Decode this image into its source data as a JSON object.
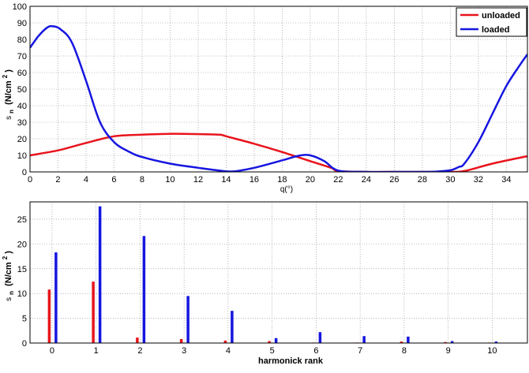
{
  "chart_data": [
    {
      "type": "line",
      "title": "",
      "xlabel": "q(°)",
      "ylabel": "s_n (N/cm²)",
      "ylabel_parts": {
        "sym": "s",
        "sub": "n",
        "unit": "(N/cm",
        "sup": "2",
        "close": ")"
      },
      "xlim": [
        0,
        35.5
      ],
      "ylim": [
        0,
        100
      ],
      "xticks": [
        0,
        2,
        4,
        6,
        8,
        10,
        12,
        14,
        16,
        18,
        20,
        22,
        24,
        26,
        28,
        30,
        32,
        34
      ],
      "yticks": [
        0,
        10,
        20,
        30,
        40,
        50,
        60,
        70,
        80,
        90,
        100
      ],
      "grid": true,
      "legend_placement": "top-right",
      "series": [
        {
          "name": "unloaded",
          "color": "#e8141c",
          "points": [
            [
              0,
              10
            ],
            [
              2,
              13
            ],
            [
              4,
              17.5
            ],
            [
              6,
              21.5
            ],
            [
              8,
              22.5
            ],
            [
              10,
              23
            ],
            [
              12,
              22.8
            ],
            [
              13.5,
              22.5
            ],
            [
              14,
              21.5
            ],
            [
              16,
              17
            ],
            [
              18,
              12
            ],
            [
              20,
              6.5
            ],
            [
              21.5,
              2.5
            ],
            [
              22,
              0.5
            ],
            [
              24,
              0
            ],
            [
              26,
              0
            ],
            [
              28,
              0
            ],
            [
              30,
              0
            ],
            [
              31,
              0.5
            ],
            [
              33,
              5
            ],
            [
              35.5,
              9.5
            ]
          ]
        },
        {
          "name": "loaded",
          "color": "#1616e0",
          "points": [
            [
              0,
              75
            ],
            [
              0.6,
              82
            ],
            [
              1.2,
              87
            ],
            [
              1.6,
              88
            ],
            [
              2.2,
              86
            ],
            [
              3,
              78
            ],
            [
              4,
              55
            ],
            [
              5,
              30
            ],
            [
              6,
              18
            ],
            [
              7,
              12.5
            ],
            [
              8,
              9
            ],
            [
              10,
              5
            ],
            [
              12,
              2.5
            ],
            [
              13.5,
              0.8
            ],
            [
              14.5,
              0.3
            ],
            [
              16,
              2.5
            ],
            [
              18,
              7
            ],
            [
              19.2,
              9.8
            ],
            [
              20,
              10
            ],
            [
              21,
              6.5
            ],
            [
              22,
              0.8
            ],
            [
              24,
              0
            ],
            [
              26,
              0
            ],
            [
              28,
              0
            ],
            [
              29,
              0.2
            ],
            [
              30,
              1
            ],
            [
              30.6,
              3
            ],
            [
              31,
              5
            ],
            [
              32,
              18
            ],
            [
              33,
              35
            ],
            [
              34,
              52
            ],
            [
              35,
              65
            ],
            [
              35.5,
              71
            ]
          ]
        }
      ]
    },
    {
      "type": "bar",
      "title": "",
      "xlabel": "harmonick rank",
      "ylabel": "s_n (N/cm²)",
      "ylabel_parts": {
        "sym": "s",
        "sub": "n",
        "unit": "(N/cm",
        "sup": "2",
        "close": ")"
      },
      "categories": [
        "0",
        "1",
        "2",
        "3",
        "4",
        "5",
        "6",
        "7",
        "8",
        "9",
        "10"
      ],
      "ylim": [
        0,
        28.5
      ],
      "yticks": [
        0,
        5,
        10,
        15,
        20,
        25
      ],
      "grid": true,
      "series": [
        {
          "name": "unloaded",
          "color": "#e8141c",
          "values": [
            10.8,
            12.4,
            1.1,
            0.8,
            0.5,
            0.4,
            0.1,
            0.1,
            0.3,
            0.2,
            0.1
          ]
        },
        {
          "name": "loaded",
          "color": "#1616e0",
          "values": [
            18.3,
            27.6,
            21.6,
            9.5,
            6.5,
            1.0,
            2.2,
            1.4,
            1.3,
            0.4,
            0.3
          ]
        }
      ]
    }
  ]
}
